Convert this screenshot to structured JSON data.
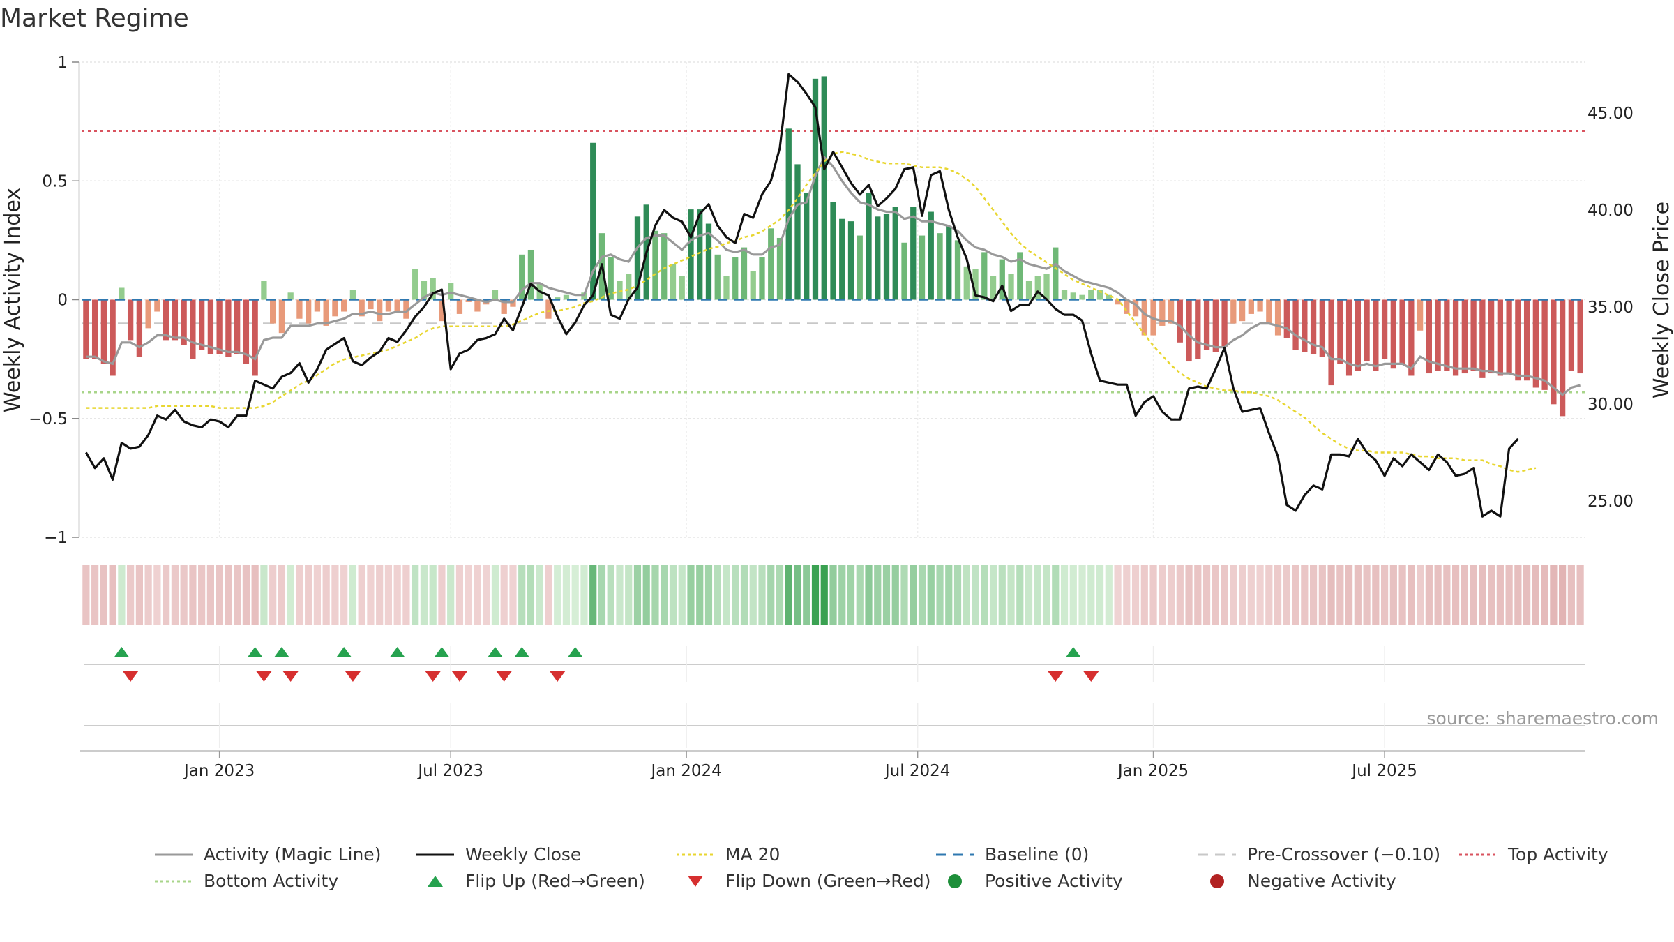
{
  "title": "Market Regime",
  "source": "source: sharemaestro.com",
  "chart_data": {
    "type": "bar",
    "xlabel": "",
    "ylabel_left": "Weekly Activity Index",
    "ylabel_right": "Weekly Close Price",
    "ylim_left": [
      -1,
      1
    ],
    "ylim_right": [
      23.5,
      48.0
    ],
    "left_ticks": [
      1,
      0.5,
      0,
      -0.5,
      -1
    ],
    "left_tick_labels": [
      "1",
      "0.5",
      "0",
      "−0.5",
      "−1"
    ],
    "right_ticks": [
      45,
      40,
      35,
      30,
      25
    ],
    "right_tick_labels": [
      "45.00",
      "40.00",
      "35.00",
      "30.00",
      "25.00"
    ],
    "x_tick_labels": [
      "Jan 2023",
      "Jul 2023",
      "Jan 2024",
      "Jul 2024",
      "Jan 2025",
      "Jul 2025"
    ],
    "x_tick_weeks": [
      15,
      41,
      67.5,
      93.5,
      120,
      146
    ],
    "grid": true,
    "legend_position": "bottom",
    "top_activity": 0.71,
    "bottom_activity": -0.39,
    "pre_crossover": -0.1,
    "activity": [
      -0.25,
      -0.25,
      -0.27,
      -0.32,
      0.05,
      -0.17,
      -0.24,
      -0.12,
      -0.05,
      -0.17,
      -0.17,
      -0.19,
      -0.25,
      -0.21,
      -0.23,
      -0.23,
      -0.24,
      -0.23,
      -0.27,
      -0.32,
      0.08,
      -0.1,
      -0.14,
      0.03,
      -0.08,
      -0.1,
      -0.05,
      -0.11,
      -0.07,
      -0.05,
      0.04,
      -0.07,
      -0.04,
      -0.09,
      -0.05,
      -0.05,
      -0.08,
      0.13,
      0.08,
      0.09,
      -0.09,
      0.07,
      -0.06,
      -0.01,
      -0.05,
      -0.02,
      0.04,
      -0.06,
      -0.03,
      0.19,
      0.21,
      0.07,
      -0.08,
      0.01,
      0.02,
      0.0,
      0.03,
      0.66,
      0.28,
      0.18,
      0.08,
      0.11,
      0.35,
      0.4,
      0.29,
      0.28,
      0.15,
      0.1,
      0.38,
      0.38,
      0.32,
      0.19,
      0.1,
      0.18,
      0.22,
      0.12,
      0.18,
      0.3,
      0.26,
      0.72,
      0.57,
      0.45,
      0.93,
      0.94,
      0.41,
      0.34,
      0.33,
      0.27,
      0.45,
      0.35,
      0.36,
      0.39,
      0.24,
      0.39,
      0.27,
      0.37,
      0.28,
      0.31,
      0.25,
      0.14,
      0.13,
      0.2,
      0.1,
      0.17,
      0.11,
      0.2,
      0.08,
      0.1,
      0.11,
      0.22,
      0.04,
      0.03,
      0.02,
      0.04,
      0.04,
      0.02,
      -0.02,
      -0.06,
      -0.07,
      -0.15,
      -0.15,
      -0.11,
      -0.1,
      -0.18,
      -0.26,
      -0.25,
      -0.21,
      -0.22,
      -0.2,
      -0.1,
      -0.09,
      -0.06,
      -0.05,
      -0.1,
      -0.15,
      -0.16,
      -0.21,
      -0.22,
      -0.23,
      -0.24,
      -0.36,
      -0.27,
      -0.32,
      -0.3,
      -0.26,
      -0.3,
      -0.25,
      -0.29,
      -0.27,
      -0.32,
      -0.13,
      -0.31,
      -0.3,
      -0.3,
      -0.32,
      -0.31,
      -0.3,
      -0.33,
      -0.31,
      -0.32,
      -0.31,
      -0.34,
      -0.34,
      -0.37,
      -0.38,
      -0.44,
      -0.49,
      -0.3,
      -0.31
    ],
    "magic_line": [
      -0.24,
      -0.24,
      -0.26,
      -0.27,
      -0.18,
      -0.18,
      -0.2,
      -0.18,
      -0.15,
      -0.15,
      -0.16,
      -0.16,
      -0.18,
      -0.19,
      -0.2,
      -0.21,
      -0.22,
      -0.22,
      -0.23,
      -0.25,
      -0.17,
      -0.16,
      -0.16,
      -0.11,
      -0.11,
      -0.11,
      -0.1,
      -0.1,
      -0.09,
      -0.08,
      -0.06,
      -0.06,
      -0.05,
      -0.06,
      -0.06,
      -0.05,
      -0.05,
      -0.02,
      0.01,
      0.03,
      0.02,
      0.03,
      0.02,
      0.01,
      0.0,
      -0.01,
      0.0,
      -0.01,
      -0.01,
      0.04,
      0.07,
      0.07,
      0.05,
      0.04,
      0.03,
      0.02,
      0.02,
      0.12,
      0.18,
      0.19,
      0.17,
      0.16,
      0.22,
      0.26,
      0.27,
      0.27,
      0.24,
      0.21,
      0.25,
      0.27,
      0.28,
      0.25,
      0.21,
      0.2,
      0.21,
      0.19,
      0.19,
      0.22,
      0.23,
      0.34,
      0.4,
      0.41,
      0.52,
      0.6,
      0.56,
      0.5,
      0.45,
      0.41,
      0.4,
      0.38,
      0.37,
      0.37,
      0.34,
      0.35,
      0.33,
      0.33,
      0.32,
      0.31,
      0.29,
      0.25,
      0.22,
      0.21,
      0.19,
      0.18,
      0.16,
      0.17,
      0.15,
      0.14,
      0.13,
      0.15,
      0.12,
      0.1,
      0.08,
      0.07,
      0.06,
      0.05,
      0.03,
      0.0,
      -0.02,
      -0.06,
      -0.08,
      -0.09,
      -0.09,
      -0.11,
      -0.15,
      -0.18,
      -0.19,
      -0.2,
      -0.2,
      -0.17,
      -0.15,
      -0.12,
      -0.1,
      -0.1,
      -0.11,
      -0.12,
      -0.15,
      -0.17,
      -0.19,
      -0.2,
      -0.25,
      -0.25,
      -0.27,
      -0.28,
      -0.27,
      -0.28,
      -0.27,
      -0.27,
      -0.27,
      -0.29,
      -0.24,
      -0.26,
      -0.27,
      -0.28,
      -0.29,
      -0.29,
      -0.29,
      -0.3,
      -0.3,
      -0.31,
      -0.31,
      -0.32,
      -0.32,
      -0.33,
      -0.34,
      -0.37,
      -0.4,
      -0.37,
      -0.36
    ],
    "weekly_close": [
      27.5,
      26.7,
      27.2,
      26.1,
      28.0,
      27.7,
      27.8,
      28.4,
      29.4,
      29.2,
      29.7,
      29.1,
      28.9,
      28.8,
      29.2,
      29.1,
      28.8,
      29.4,
      29.4,
      31.2,
      31.0,
      30.8,
      31.4,
      31.6,
      32.1,
      31.1,
      31.8,
      32.8,
      33.1,
      33.4,
      32.2,
      32.0,
      32.4,
      32.7,
      33.4,
      33.2,
      33.8,
      34.5,
      35.0,
      35.7,
      35.9,
      31.8,
      32.6,
      32.8,
      33.3,
      33.4,
      33.6,
      34.4,
      33.8,
      35.0,
      36.2,
      35.8,
      35.6,
      34.5,
      33.6,
      34.2,
      35.1,
      35.6,
      37.2,
      34.6,
      34.4,
      35.4,
      36.0,
      37.8,
      39.2,
      40.0,
      39.6,
      39.4,
      38.6,
      39.8,
      40.3,
      39.2,
      38.6,
      38.3,
      39.8,
      39.6,
      40.8,
      41.5,
      43.2,
      47.0,
      46.6,
      46.0,
      45.3,
      42.1,
      43.0,
      42.2,
      41.4,
      40.8,
      41.3,
      40.2,
      40.6,
      41.1,
      42.1,
      42.2,
      39.7,
      41.8,
      42.0,
      40.0,
      38.6,
      37.5,
      35.6,
      35.5,
      35.3,
      36.1,
      34.8,
      35.1,
      35.1,
      35.8,
      35.4,
      34.9,
      34.6,
      34.6,
      34.3,
      32.6,
      31.2,
      31.1,
      31.0,
      31.0,
      29.4,
      30.1,
      30.4,
      29.6,
      29.2,
      29.2,
      30.8,
      30.9,
      30.8,
      31.8,
      32.9,
      30.8,
      29.6,
      29.7,
      29.8,
      28.5,
      27.3,
      24.8,
      24.5,
      25.3,
      25.8,
      25.6,
      27.4,
      27.4,
      27.3,
      28.2,
      27.5,
      27.1,
      26.3,
      27.2,
      26.8,
      27.4,
      27.0,
      26.6,
      27.4,
      27.0,
      26.3,
      26.4,
      26.7,
      24.2,
      24.5,
      24.2,
      27.7,
      28.2
    ],
    "ma20": [
      29.8,
      29.8,
      29.8,
      29.8,
      29.8,
      29.8,
      29.8,
      29.8,
      29.9,
      29.9,
      29.9,
      29.9,
      29.9,
      29.9,
      29.9,
      29.8,
      29.8,
      29.8,
      29.8,
      29.8,
      29.9,
      30.1,
      30.4,
      30.7,
      31.0,
      31.2,
      31.5,
      31.8,
      32.1,
      32.3,
      32.4,
      32.5,
      32.6,
      32.7,
      32.8,
      33.0,
      33.2,
      33.4,
      33.7,
      33.9,
      34.0,
      34.0,
      34.0,
      34.0,
      34.0,
      34.0,
      34.0,
      34.0,
      34.1,
      34.3,
      34.5,
      34.7,
      34.8,
      34.8,
      34.9,
      35.0,
      35.2,
      35.3,
      35.5,
      35.7,
      35.8,
      35.9,
      36.1,
      36.4,
      36.7,
      37.0,
      37.2,
      37.4,
      37.6,
      37.8,
      38.0,
      38.1,
      38.3,
      38.4,
      38.6,
      38.7,
      38.9,
      39.2,
      39.5,
      40.0,
      40.6,
      41.3,
      41.9,
      42.5,
      42.9,
      43.0,
      42.9,
      42.8,
      42.6,
      42.5,
      42.4,
      42.4,
      42.4,
      42.3,
      42.2,
      42.2,
      42.2,
      42.1,
      41.9,
      41.6,
      41.2,
      40.6,
      40.0,
      39.4,
      38.8,
      38.3,
      37.9,
      37.6,
      37.3,
      37.0,
      36.7,
      36.4,
      36.2,
      36.0,
      35.8,
      35.6,
      35.4,
      34.8,
      34.2,
      33.6,
      33.0,
      32.5,
      32.0,
      31.6,
      31.3,
      31.1,
      30.9,
      30.8,
      30.7,
      30.7,
      30.6,
      30.6,
      30.5,
      30.4,
      30.2,
      29.9,
      29.6,
      29.3,
      28.9,
      28.5,
      28.2,
      27.9,
      27.7,
      27.6,
      27.6,
      27.5,
      27.5,
      27.5,
      27.5,
      27.4,
      27.3,
      27.3,
      27.2,
      27.2,
      27.2,
      27.1,
      27.1,
      27.1,
      26.9,
      26.8,
      26.6,
      26.5,
      26.6,
      26.7
    ],
    "flip_up_weeks": [
      4,
      19,
      22,
      29,
      35,
      40,
      46,
      49,
      55,
      111
    ],
    "flip_down_weeks": [
      5,
      20,
      23,
      30,
      39,
      42,
      47,
      53,
      109,
      113
    ]
  },
  "legend": {
    "items": [
      {
        "label": "Activity (Magic Line)",
        "color": "#999999",
        "style": "solid"
      },
      {
        "label": "Weekly Close",
        "color": "#111111",
        "style": "solid"
      },
      {
        "label": "MA 20",
        "color": "#e8d630",
        "style": "dotted"
      },
      {
        "label": "Baseline (0)",
        "color": "#2f78b0",
        "style": "dashed"
      },
      {
        "label": "Pre-Crossover (−0.10)",
        "color": "#c8c8c8",
        "style": "dashed"
      },
      {
        "label": "Top Activity",
        "color": "#d9535f",
        "style": "dotted"
      },
      {
        "label": "Bottom Activity",
        "color": "#a8d58a",
        "style": "dotted"
      },
      {
        "label": "Flip Up (Red→Green)",
        "color": "#26a24f",
        "style": "triangle-up"
      },
      {
        "label": "Flip Down (Green→Red)",
        "color": "#d62f2f",
        "style": "triangle-down"
      },
      {
        "label": "Positive Activity",
        "color": "#1e8f3a",
        "style": "dot"
      },
      {
        "label": "Negative Activity",
        "color": "#b22222",
        "style": "dot"
      }
    ]
  }
}
